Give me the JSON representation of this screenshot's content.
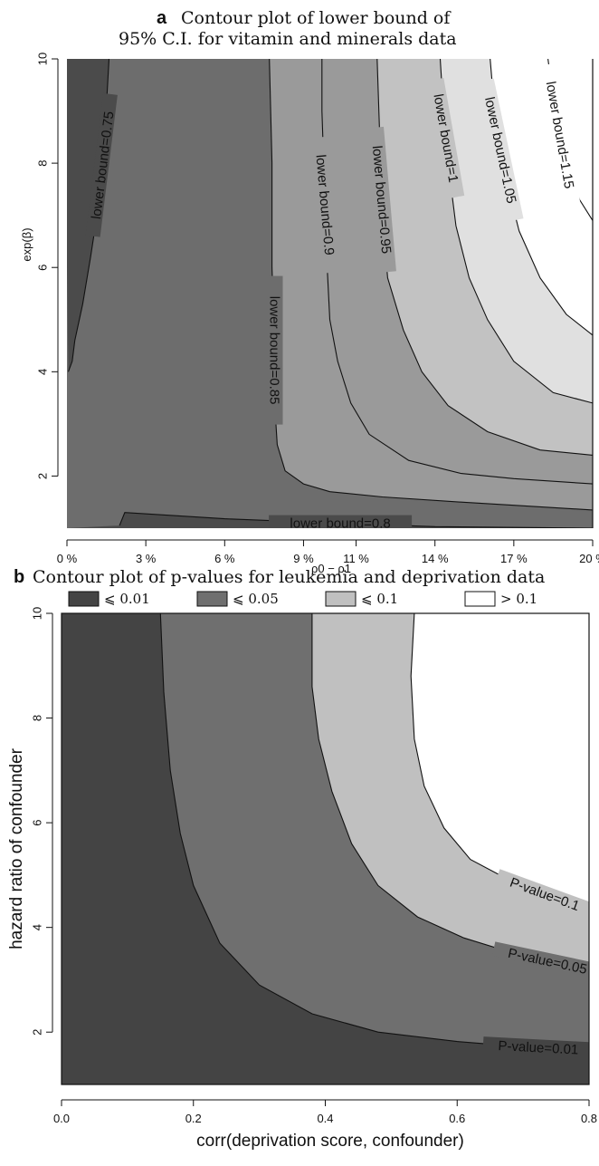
{
  "chart_data": [
    {
      "panel": "a",
      "type": "contour",
      "title": [
        "Contour plot of lower bound of",
        "95% C.I. for vitamin and minerals data"
      ],
      "xlabel": "ρ0 − ρ1",
      "ylabel": "exp(β)",
      "x_ticks": [
        "0 %",
        "3 %",
        "6 %",
        "9 %",
        "11 %",
        "14 %",
        "17 %",
        "20 %"
      ],
      "x_tick_values": [
        0,
        0.03,
        0.06,
        0.09,
        0.11,
        0.14,
        0.17,
        0.2
      ],
      "y_ticks": [
        "2",
        "4",
        "6",
        "8",
        "10"
      ],
      "y_tick_values": [
        2,
        4,
        6,
        8,
        10
      ],
      "xlim": [
        0,
        0.2
      ],
      "ylim": [
        1,
        10
      ],
      "contour_levels": [
        {
          "value": 0.75,
          "label": "lower bound=0.75",
          "points": [
            [
              0.0005,
              4.0
            ],
            [
              0.002,
              4.2
            ],
            [
              0.003,
              4.6
            ],
            [
              0.006,
              5.3
            ],
            [
              0.009,
              6.2
            ],
            [
              0.012,
              7.2
            ],
            [
              0.014,
              8.2
            ],
            [
              0.015,
              9.1
            ],
            [
              0.016,
              10.0
            ]
          ]
        },
        {
          "value": 0.8,
          "label": "lower bound=0.8",
          "points": [
            [
              0.02,
              1.05
            ],
            [
              0.022,
              1.3
            ],
            [
              0.06,
              1.18
            ],
            [
              0.1,
              1.1
            ],
            [
              0.14,
              1.03
            ],
            [
              0.2,
              1.0
            ]
          ]
        },
        {
          "value": 0.85,
          "label": "lower bound=0.85",
          "points": [
            [
              0.2,
              1.35
            ],
            [
              0.15,
              1.5
            ],
            [
              0.12,
              1.6
            ],
            [
              0.1,
              1.7
            ],
            [
              0.09,
              1.85
            ],
            [
              0.083,
              2.1
            ],
            [
              0.08,
              2.6
            ],
            [
              0.079,
              3.4
            ],
            [
              0.079,
              4.5
            ],
            [
              0.078,
              6.0
            ],
            [
              0.078,
              8.0
            ],
            [
              0.077,
              10.0
            ]
          ]
        },
        {
          "value": 0.9,
          "label": "lower bound=0.9",
          "points": [
            [
              0.2,
              1.85
            ],
            [
              0.17,
              1.95
            ],
            [
              0.15,
              2.05
            ],
            [
              0.13,
              2.3
            ],
            [
              0.115,
              2.8
            ],
            [
              0.108,
              3.4
            ],
            [
              0.103,
              4.2
            ],
            [
              0.1,
              5.0
            ],
            [
              0.099,
              6.0
            ],
            [
              0.098,
              7.5
            ],
            [
              0.097,
              9.0
            ],
            [
              0.097,
              10.0
            ]
          ]
        },
        {
          "value": 0.95,
          "label": "lower bound=0.95",
          "points": [
            [
              0.2,
              2.4
            ],
            [
              0.18,
              2.5
            ],
            [
              0.16,
              2.85
            ],
            [
              0.145,
              3.35
            ],
            [
              0.135,
              4.0
            ],
            [
              0.128,
              4.8
            ],
            [
              0.122,
              5.8
            ],
            [
              0.12,
              7.0
            ],
            [
              0.119,
              8.5
            ],
            [
              0.118,
              10.0
            ]
          ]
        },
        {
          "value": 1.0,
          "label": "lower bound=1",
          "points": [
            [
              0.2,
              3.4
            ],
            [
              0.185,
              3.6
            ],
            [
              0.17,
              4.2
            ],
            [
              0.16,
              5.0
            ],
            [
              0.153,
              5.8
            ],
            [
              0.148,
              6.8
            ],
            [
              0.145,
              8.0
            ],
            [
              0.143,
              9.2
            ],
            [
              0.142,
              10.0
            ]
          ]
        },
        {
          "value": 1.05,
          "label": "lower bound=1.05",
          "points": [
            [
              0.2,
              4.7
            ],
            [
              0.19,
              5.1
            ],
            [
              0.18,
              5.8
            ],
            [
              0.172,
              6.7
            ],
            [
              0.167,
              7.7
            ],
            [
              0.163,
              8.8
            ],
            [
              0.161,
              10.0
            ]
          ]
        },
        {
          "value": 1.15,
          "label": "lower bound=1.15",
          "points": [
            [
              0.2,
              6.9
            ],
            [
              0.195,
              7.3
            ],
            [
              0.19,
              8.0
            ],
            [
              0.186,
              8.9
            ],
            [
              0.183,
              10.0
            ]
          ]
        }
      ],
      "fill_colors": [
        "#4b4b4b",
        "#6d6d6d",
        "#9a9a9a",
        "#c2c2c2",
        "#e0e0e0",
        "#ffffff",
        "#ffffff"
      ]
    },
    {
      "panel": "b",
      "type": "contour",
      "title": "Contour plot of p-values for leukemia and deprivation data",
      "xlabel": "corr(deprivation score, confounder)",
      "ylabel": "hazard ratio of confounder",
      "x_ticks": [
        "0.0",
        "0.2",
        "0.4",
        "0.6",
        "0.8"
      ],
      "x_tick_values": [
        0.0,
        0.2,
        0.4,
        0.6,
        0.8
      ],
      "y_ticks": [
        "2",
        "4",
        "6",
        "8",
        "10"
      ],
      "y_tick_values": [
        2,
        4,
        6,
        8,
        10
      ],
      "xlim": [
        0.0,
        0.8
      ],
      "ylim": [
        1,
        10
      ],
      "legend": [
        {
          "label": "⩽ 0.01",
          "color": "#444444"
        },
        {
          "label": "⩽ 0.05",
          "color": "#6f6f6f"
        },
        {
          "label": "⩽ 0.1",
          "color": "#c0c0c0"
        },
        {
          "label": "> 0.1",
          "color": "#ffffff"
        }
      ],
      "contour_levels": [
        {
          "value": 0.01,
          "label": "P-value=0.01",
          "points": [
            [
              0.15,
              10.0
            ],
            [
              0.155,
              8.5
            ],
            [
              0.165,
              7.0
            ],
            [
              0.18,
              5.8
            ],
            [
              0.2,
              4.8
            ],
            [
              0.24,
              3.7
            ],
            [
              0.3,
              2.9
            ],
            [
              0.38,
              2.35
            ],
            [
              0.48,
              2.0
            ],
            [
              0.6,
              1.82
            ],
            [
              0.7,
              1.72
            ],
            [
              0.8,
              1.65
            ]
          ]
        },
        {
          "value": 0.05,
          "label": "P-value=0.05",
          "points": [
            [
              0.38,
              10.0
            ],
            [
              0.38,
              8.6
            ],
            [
              0.39,
              7.6
            ],
            [
              0.41,
              6.6
            ],
            [
              0.44,
              5.6
            ],
            [
              0.48,
              4.8
            ],
            [
              0.54,
              4.2
            ],
            [
              0.61,
              3.8
            ],
            [
              0.7,
              3.45
            ],
            [
              0.8,
              3.2
            ]
          ]
        },
        {
          "value": 0.1,
          "label": "P-value=0.1",
          "points": [
            [
              0.535,
              10.0
            ],
            [
              0.53,
              8.8
            ],
            [
              0.535,
              7.6
            ],
            [
              0.55,
              6.7
            ],
            [
              0.58,
              5.9
            ],
            [
              0.62,
              5.3
            ],
            [
              0.68,
              4.9
            ],
            [
              0.74,
              4.6
            ],
            [
              0.8,
              4.45
            ]
          ]
        }
      ]
    }
  ]
}
